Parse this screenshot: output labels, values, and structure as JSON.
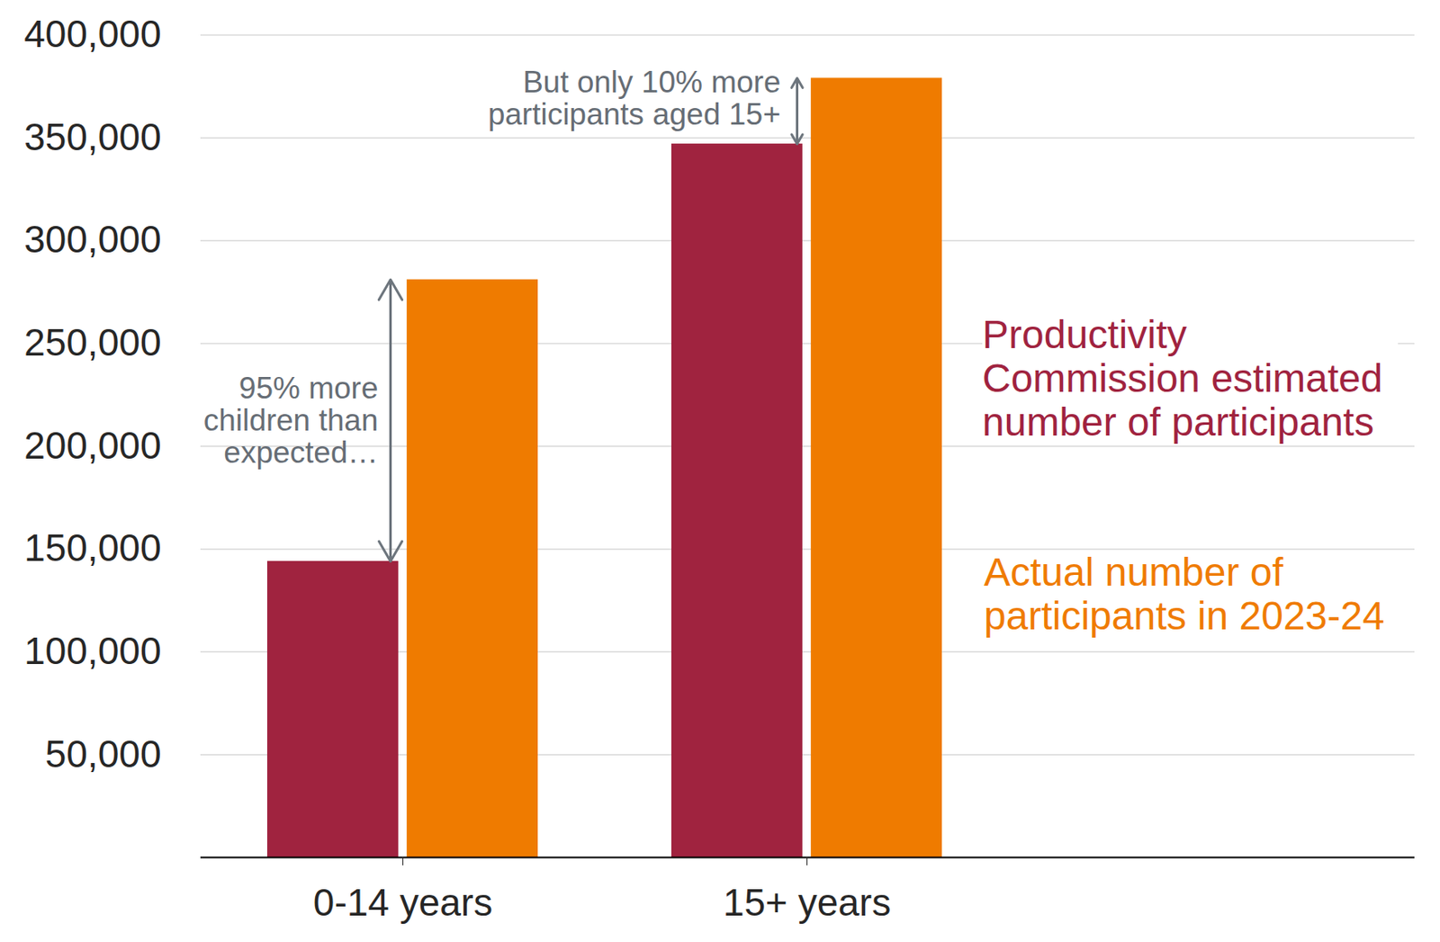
{
  "chart_data": {
    "type": "bar",
    "categories": [
      "0-14 years",
      "15+ years"
    ],
    "series": [
      {
        "name": "Productivity Commission estimated number of participants",
        "color": "#a0233f",
        "values": [
          144000,
          347000
        ]
      },
      {
        "name": "Actual number of participants in 2023-24",
        "color": "#ef7b00",
        "values": [
          281000,
          379000
        ]
      }
    ],
    "ylim": [
      0,
      400000
    ],
    "yticks": [
      {
        "value": 50000,
        "label": "50,000"
      },
      {
        "value": 100000,
        "label": "100,000"
      },
      {
        "value": 150000,
        "label": "150,000"
      },
      {
        "value": 200000,
        "label": "200,000"
      },
      {
        "value": 250000,
        "label": "250,000"
      },
      {
        "value": 300000,
        "label": "300,000"
      },
      {
        "value": 350000,
        "label": "350,000"
      },
      {
        "value": 400000,
        "label": "400,000"
      }
    ],
    "grid": true,
    "legend": "right",
    "annotations": [
      {
        "text": "95% more children than expected…",
        "category": "0-14 years"
      },
      {
        "text": "But only 10% more participants aged 15+",
        "category": "15+ years"
      }
    ]
  }
}
